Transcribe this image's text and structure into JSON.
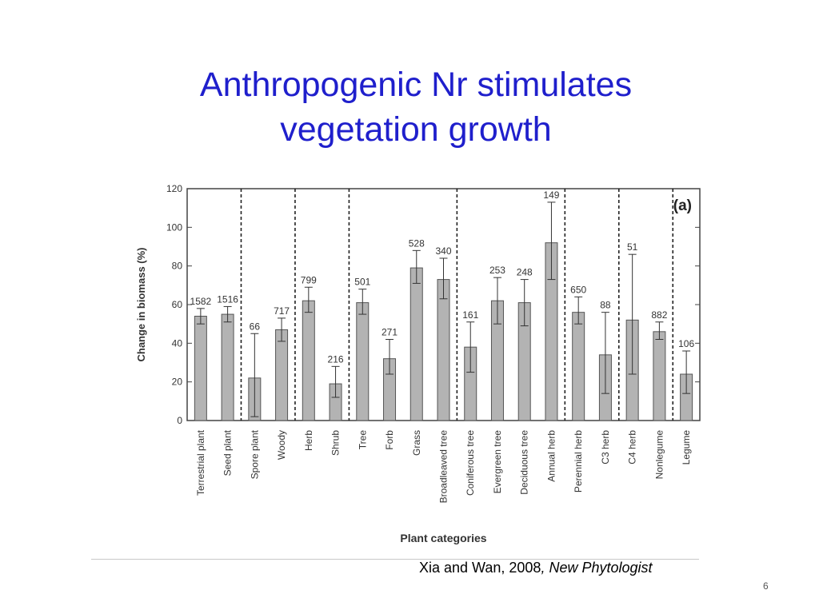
{
  "slide": {
    "title_line1": "Anthropogenic Nr stimulates",
    "title_line2": "vegetation growth",
    "citation_authors": "Xia and Wan, 2008",
    "citation_journal": ", New Phytologist",
    "page_number": "6"
  },
  "colors": {
    "title": "#1f1fcc",
    "bar": "#b3b3b3"
  },
  "chart_data": {
    "type": "bar",
    "panel_label": "(a)",
    "xlabel": "Plant categories",
    "ylabel": "Change in biomass (%)",
    "ylim": [
      0,
      120
    ],
    "yticks": [
      0,
      20,
      40,
      60,
      80,
      100,
      120
    ],
    "grid": false,
    "categories": [
      "Terrestrial plant",
      "Seed plant",
      "Spore plant",
      "Woody",
      "Herb",
      "Shrub",
      "Tree",
      "Forb",
      "Grass",
      "Broadleaved tree",
      "Coniferous tree",
      "Evergreen tree",
      "Deciduous tree",
      "Annual herb",
      "Perennial herb",
      "C3 herb",
      "C4 herb",
      "Nonlegume",
      "Legume"
    ],
    "values": [
      54,
      55,
      22,
      47,
      62,
      19,
      61,
      32,
      79,
      73,
      38,
      62,
      61,
      92,
      56,
      34,
      52,
      46,
      24
    ],
    "errors": [
      [
        50,
        58
      ],
      [
        51,
        59
      ],
      [
        2,
        45
      ],
      [
        41,
        53
      ],
      [
        56,
        69
      ],
      [
        12,
        28
      ],
      [
        55,
        68
      ],
      [
        24,
        42
      ],
      [
        71,
        88
      ],
      [
        63,
        84
      ],
      [
        25,
        51
      ],
      [
        50,
        74
      ],
      [
        49,
        73
      ],
      [
        73,
        113
      ],
      [
        50,
        64
      ],
      [
        14,
        56
      ],
      [
        24,
        86
      ],
      [
        42,
        51
      ],
      [
        14,
        36
      ]
    ],
    "sample_sizes": [
      "1582",
      "1516",
      "66",
      "717",
      "799",
      "216",
      "501",
      "271",
      "528",
      "340",
      "161",
      "253",
      "248",
      "149",
      "650",
      "88",
      "51",
      "882",
      "106"
    ],
    "group_dividers_after": [
      1,
      3,
      5,
      9,
      13,
      15,
      17
    ]
  }
}
